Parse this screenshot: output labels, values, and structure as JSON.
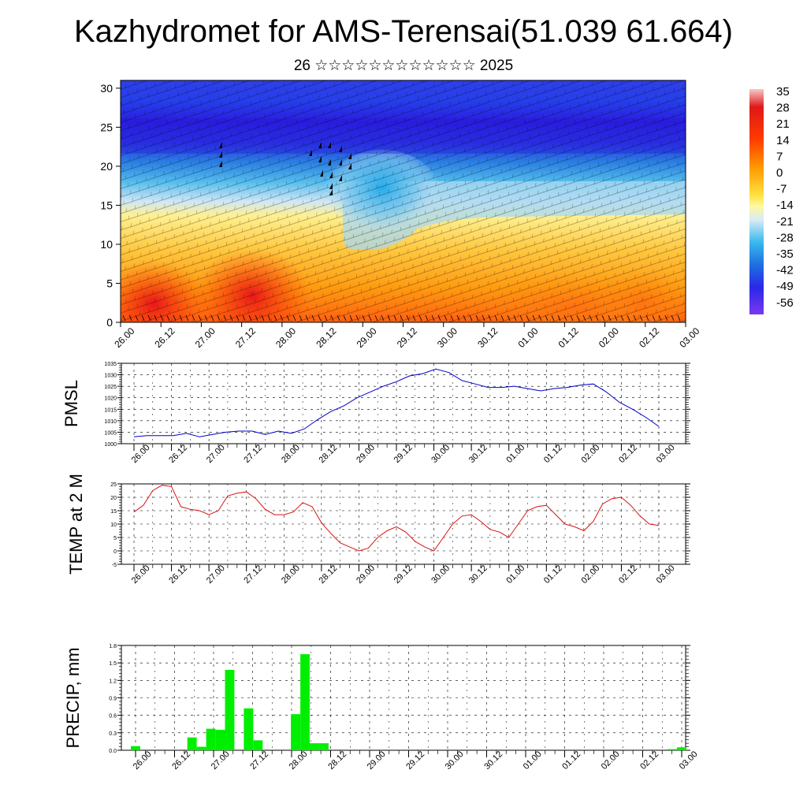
{
  "header": {
    "title": "Kazhydromet for AMS-Terensai(51.039 61.664)",
    "subtitle": "26 ☆☆☆☆☆☆☆☆☆☆☆☆ 2025"
  },
  "time_ticks": [
    "26.00",
    "26.12",
    "27.00",
    "27.12",
    "28.00",
    "28.12",
    "29.00",
    "29.12",
    "30.00",
    "30.12",
    "01.00",
    "01.12",
    "02.00",
    "02.12",
    "03.00"
  ],
  "chart_data": [
    {
      "id": "cross-section",
      "type": "heatmap",
      "title": "",
      "xlabel": "",
      "ylabel": "",
      "x_ticks": [
        "26.00",
        "26.12",
        "27.00",
        "27.12",
        "28.00",
        "28.12",
        "29.00",
        "29.12",
        "30.00",
        "30.12",
        "01.00",
        "01.12",
        "02.00",
        "02.12",
        "03.00"
      ],
      "y_ticks": [
        0,
        5,
        10,
        15,
        20,
        25,
        30
      ],
      "ylim": [
        0,
        31
      ],
      "colorbar_labels": [
        "35",
        "28",
        "21",
        "14",
        "7",
        "0",
        "-7",
        "-14",
        "-21",
        "-28",
        "-35",
        "-42",
        "-49",
        "-56"
      ],
      "colorbar_colors": [
        "#f4a7a7",
        "#e01818",
        "#ff4a00",
        "#ff7f00",
        "#ffb000",
        "#ffd540",
        "#fff37a",
        "#d8ecf6",
        "#8fd0f0",
        "#28b0ea",
        "#1a78e0",
        "#2c3fe8",
        "#2f18e8",
        "#6b2ff0"
      ]
    },
    {
      "id": "pmsl",
      "type": "line",
      "ylabel": "PMSL",
      "x_ticks": [
        "26.00",
        "26.12",
        "27.00",
        "27.12",
        "28.00",
        "28.12",
        "29.00",
        "29.12",
        "30.00",
        "30.12",
        "01.00",
        "01.12",
        "02.00",
        "02.12",
        "03.00"
      ],
      "y_ticks": [
        1000,
        1005,
        1010,
        1015,
        1020,
        1025,
        1030,
        1035
      ],
      "ylim": [
        1000,
        1035
      ],
      "color": "#0000cc",
      "values": [
        1003,
        1003.5,
        1003.5,
        1003.5,
        1004.5,
        1003,
        1004,
        1005,
        1005.5,
        1005.5,
        1004,
        1005.5,
        1004.5,
        1006.5,
        1010.5,
        1014,
        1016.5,
        1020,
        1022.5,
        1025,
        1027,
        1029.5,
        1030.5,
        1032.5,
        1031,
        1027.5,
        1026,
        1024.5,
        1024.5,
        1025,
        1024,
        1023,
        1024,
        1024.5,
        1025.5,
        1026,
        1022.5,
        1018,
        1015,
        1011.5,
        1007.5
      ]
    },
    {
      "id": "temp2m",
      "type": "line",
      "ylabel": "TEMP at 2 M",
      "x_ticks": [
        "26.00",
        "26.12",
        "27.00",
        "27.12",
        "28.00",
        "28.12",
        "29.00",
        "29.12",
        "30.00",
        "30.12",
        "01.00",
        "01.12",
        "02.00",
        "02.12",
        "03.00"
      ],
      "y_ticks": [
        -5,
        0,
        5,
        10,
        15,
        20,
        25
      ],
      "ylim": [
        -5,
        25
      ],
      "color": "#dd1111",
      "values": [
        14.5,
        17,
        22.5,
        24.5,
        24,
        16.5,
        15.5,
        15,
        13.5,
        15,
        20.5,
        21.5,
        22,
        19.5,
        15.5,
        13.5,
        13.5,
        14.5,
        18,
        16.5,
        10.5,
        6.5,
        3,
        1.5,
        0,
        1,
        5,
        7.5,
        9,
        7,
        3.5,
        1.5,
        0,
        5,
        10,
        13,
        13.5,
        11,
        8,
        7,
        5,
        10,
        15,
        16.5,
        17,
        13.5,
        10,
        9,
        7.5,
        11,
        17.5,
        19.5,
        20,
        17,
        13,
        10,
        9.5
      ]
    },
    {
      "id": "precip",
      "type": "bar",
      "ylabel": "PRECIP, mm",
      "x_ticks": [
        "26.00",
        "26.12",
        "27.00",
        "27.12",
        "28.00",
        "28.12",
        "29.00",
        "29.12",
        "30.00",
        "30.12",
        "01.00",
        "01.12",
        "02.00",
        "02.12",
        "03.00"
      ],
      "y_ticks": [
        "0.0",
        "0.3",
        "0.6",
        "0.9",
        "1.2",
        "1.5",
        "1.8"
      ],
      "ylim": [
        0,
        1.8
      ],
      "color": "#00ee00",
      "x": [
        0,
        6,
        7,
        8,
        9,
        10,
        12,
        13,
        14,
        17,
        18,
        19,
        20,
        57,
        58
      ],
      "values": [
        0.07,
        0.22,
        0.06,
        0.37,
        0.35,
        1.38,
        0.72,
        0.17,
        0.0,
        0.62,
        1.65,
        0.12,
        0.12,
        0.02,
        0.05
      ],
      "slots": 58
    }
  ]
}
